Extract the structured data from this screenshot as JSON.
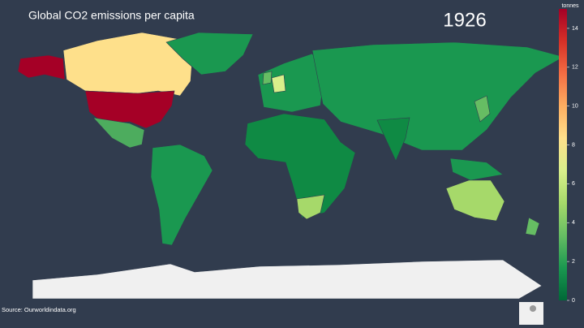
{
  "chart_data": {
    "type": "choropleth",
    "title": "Global CO2 emissions per capita",
    "annotation": "1926",
    "source": "Source: Ourworldindata.org",
    "colorbar": {
      "title": "tonnes",
      "lim": [
        0,
        15
      ],
      "ticks": [
        0,
        2,
        4,
        6,
        8,
        10,
        12,
        14
      ],
      "colors": [
        "#006837",
        "#1a9850",
        "#66bd63",
        "#a6d96a",
        "#d9ef8b",
        "#fee08b",
        "#fdae61",
        "#f46d43",
        "#d73027",
        "#a50026"
      ]
    }
  }
}
